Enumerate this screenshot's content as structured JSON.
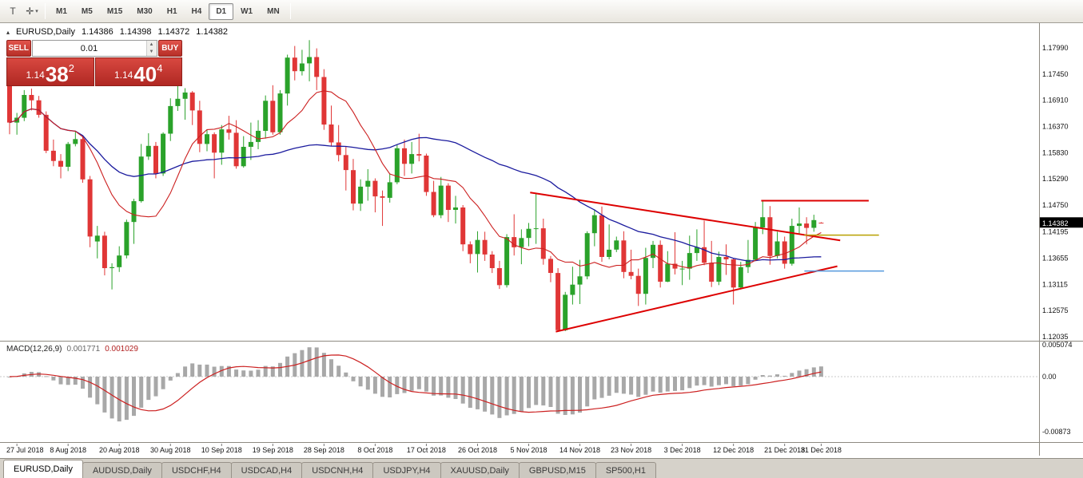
{
  "toolbar": {
    "text_tool_glyph": "T",
    "cursor_tool_glyph": "✛",
    "dropdown_caret_glyph": "▾",
    "timeframes": [
      "M1",
      "M5",
      "M15",
      "M30",
      "H1",
      "H4",
      "D1",
      "W1",
      "MN"
    ],
    "active_timeframe": "D1"
  },
  "chart_header": {
    "toggle_glyph": "▴",
    "symbol_period": "EURUSD,Daily",
    "open": "1.14386",
    "high": "1.14398",
    "low": "1.14372",
    "close": "1.14382"
  },
  "trade_panel": {
    "sell_label": "SELL",
    "buy_label": "BUY",
    "volume": "0.01",
    "spinner_up_glyph": "▲",
    "spinner_down_glyph": "▼",
    "sell_price": {
      "base": "1.14",
      "pips": "38",
      "point": "2"
    },
    "buy_price": {
      "base": "1.14",
      "pips": "40",
      "point": "4"
    },
    "panel_red": "#c7322b"
  },
  "macd_panel": {
    "title": "MACD(12,26,9)",
    "main_value": "0.001771",
    "signal_value": "0.001029"
  },
  "tabs": [
    "EURUSD,Daily",
    "AUDUSD,Daily",
    "USDCHF,H4",
    "USDCAD,H4",
    "USDCNH,H4",
    "USDJPY,H4",
    "XAUUSD,Daily",
    "GBPUSD,M15",
    "SP500,H1"
  ],
  "active_tab": "EURUSD,Daily",
  "chart_data": {
    "type": "candlestick",
    "symbol": "EURUSD",
    "period": "Daily",
    "price_axis_labels": [
      "1.17990",
      "1.17450",
      "1.16910",
      "1.16370",
      "1.15830",
      "1.15290",
      "1.14750",
      "1.14195",
      "1.13655",
      "1.13115",
      "1.12575",
      "1.12035"
    ],
    "current_price": {
      "text": "1.14382",
      "value": 1.14382,
      "badge_bg": "#000000"
    },
    "macd_axis_labels": [
      {
        "text": "0.005074",
        "value": 0.005074
      },
      {
        "text": "0.00",
        "value": 0
      },
      {
        "text": "-0.00873",
        "value": -0.00873
      }
    ],
    "date_ticks": [
      {
        "i": 1,
        "label": "27 Jul 2018"
      },
      {
        "i": 8,
        "label": "8 Aug 2018"
      },
      {
        "i": 15,
        "label": "20 Aug 2018"
      },
      {
        "i": 22,
        "label": "30 Aug 2018"
      },
      {
        "i": 29,
        "label": "10 Sep 2018"
      },
      {
        "i": 36,
        "label": "19 Sep 2018"
      },
      {
        "i": 43,
        "label": "28 Sep 2018"
      },
      {
        "i": 50,
        "label": "8 Oct 2018"
      },
      {
        "i": 57,
        "label": "17 Oct 2018"
      },
      {
        "i": 64,
        "label": "26 Oct 2018"
      },
      {
        "i": 71,
        "label": "5 Nov 2018"
      },
      {
        "i": 78,
        "label": "14 Nov 2018"
      },
      {
        "i": 85,
        "label": "23 Nov 2018"
      },
      {
        "i": 92,
        "label": "3 Dec 2018"
      },
      {
        "i": 99,
        "label": "12 Dec 2018"
      },
      {
        "i": 106,
        "label": "21 Dec 2018"
      },
      {
        "i": 111,
        "label": "31 Dec 2018"
      }
    ],
    "candles": [
      [
        1.173,
        1.1744,
        1.1621,
        1.1645
      ],
      [
        1.1645,
        1.1665,
        1.162,
        1.1655
      ],
      [
        1.1655,
        1.1712,
        1.1648,
        1.1702
      ],
      [
        1.1702,
        1.1715,
        1.167,
        1.1691
      ],
      [
        1.1691,
        1.17,
        1.1655,
        1.1661
      ],
      [
        1.1661,
        1.1668,
        1.1582,
        1.1587
      ],
      [
        1.1587,
        1.161,
        1.1555,
        1.1566
      ],
      [
        1.1566,
        1.158,
        1.153,
        1.1554
      ],
      [
        1.1554,
        1.1605,
        1.1545,
        1.1601
      ],
      [
        1.1601,
        1.1628,
        1.1596,
        1.1611
      ],
      [
        1.1611,
        1.1617,
        1.1521,
        1.1528
      ],
      [
        1.1528,
        1.1535,
        1.1388,
        1.141
      ],
      [
        1.14,
        1.1432,
        1.1365,
        1.1412
      ],
      [
        1.1412,
        1.142,
        1.133,
        1.1345
      ],
      [
        1.1345,
        1.1355,
        1.1301,
        1.1347
      ],
      [
        1.1347,
        1.139,
        1.1337,
        1.1371
      ],
      [
        1.1371,
        1.1445,
        1.1365,
        1.144
      ],
      [
        1.144,
        1.1488,
        1.1395,
        1.1483
      ],
      [
        1.1483,
        1.1601,
        1.148,
        1.1575
      ],
      [
        1.1575,
        1.1623,
        1.1568,
        1.1597
      ],
      [
        1.1597,
        1.1605,
        1.153,
        1.154
      ],
      [
        1.154,
        1.1625,
        1.1535,
        1.1622
      ],
      [
        1.1622,
        1.1695,
        1.1607,
        1.1679
      ],
      [
        1.1679,
        1.1733,
        1.1669,
        1.1694
      ],
      [
        1.1694,
        1.1716,
        1.1651,
        1.1707
      ],
      [
        1.1707,
        1.171,
        1.164,
        1.167
      ],
      [
        1.167,
        1.169,
        1.1584,
        1.1601
      ],
      [
        1.1601,
        1.163,
        1.1586,
        1.1621
      ],
      [
        1.1621,
        1.1625,
        1.153,
        1.1583
      ],
      [
        1.1583,
        1.164,
        1.1558,
        1.1631
      ],
      [
        1.1631,
        1.1659,
        1.161,
        1.1624
      ],
      [
        1.1624,
        1.165,
        1.155,
        1.1555
      ],
      [
        1.1555,
        1.1617,
        1.1552,
        1.1595
      ],
      [
        1.1595,
        1.1645,
        1.1568,
        1.1605
      ],
      [
        1.1605,
        1.165,
        1.159,
        1.1628
      ],
      [
        1.1628,
        1.1701,
        1.1612,
        1.169
      ],
      [
        1.169,
        1.1722,
        1.162,
        1.1625
      ],
      [
        1.1625,
        1.1712,
        1.162,
        1.1705
      ],
      [
        1.1705,
        1.1785,
        1.168,
        1.1779
      ],
      [
        1.1779,
        1.1803,
        1.1732,
        1.1751
      ],
      [
        1.1751,
        1.1795,
        1.1742,
        1.1767
      ],
      [
        1.1767,
        1.1815,
        1.173,
        1.178
      ],
      [
        1.178,
        1.1798,
        1.1712,
        1.1739
      ],
      [
        1.1739,
        1.1755,
        1.163,
        1.1641
      ],
      [
        1.1641,
        1.168,
        1.1597,
        1.1604
      ],
      [
        1.1604,
        1.164,
        1.1565,
        1.1578
      ],
      [
        1.1578,
        1.1595,
        1.1505,
        1.1547
      ],
      [
        1.1547,
        1.157,
        1.1464,
        1.1478
      ],
      [
        1.1478,
        1.1528,
        1.1463,
        1.1513
      ],
      [
        1.1513,
        1.1549,
        1.1484,
        1.1525
      ],
      [
        1.1525,
        1.153,
        1.146,
        1.1493
      ],
      [
        1.1493,
        1.1505,
        1.1432,
        1.149
      ],
      [
        1.149,
        1.154,
        1.148,
        1.1522
      ],
      [
        1.1522,
        1.16,
        1.1518,
        1.1592
      ],
      [
        1.1592,
        1.161,
        1.1535,
        1.156
      ],
      [
        1.156,
        1.1605,
        1.154,
        1.158
      ],
      [
        1.158,
        1.1622,
        1.1565,
        1.1577
      ],
      [
        1.1577,
        1.1581,
        1.1494,
        1.1502
      ],
      [
        1.1502,
        1.1525,
        1.145,
        1.1454
      ],
      [
        1.1454,
        1.1533,
        1.1448,
        1.1515
      ],
      [
        1.1515,
        1.152,
        1.144,
        1.1465
      ],
      [
        1.1465,
        1.1494,
        1.1437,
        1.147
      ],
      [
        1.147,
        1.1475,
        1.138,
        1.1394
      ],
      [
        1.1394,
        1.14,
        1.1355,
        1.1374
      ],
      [
        1.1374,
        1.1421,
        1.1336,
        1.1403
      ],
      [
        1.1403,
        1.142,
        1.136,
        1.1373
      ],
      [
        1.1373,
        1.138,
        1.1335,
        1.1345
      ],
      [
        1.1345,
        1.136,
        1.1302,
        1.131
      ],
      [
        1.131,
        1.1415,
        1.1305,
        1.1409
      ],
      [
        1.1409,
        1.1456,
        1.1371,
        1.1388
      ],
      [
        1.1388,
        1.1425,
        1.1353,
        1.1407
      ],
      [
        1.1407,
        1.1438,
        1.139,
        1.1426
      ],
      [
        1.1426,
        1.15,
        1.1395,
        1.1427
      ],
      [
        1.1427,
        1.1447,
        1.1352,
        1.1364
      ],
      [
        1.1364,
        1.137,
        1.1316,
        1.1335
      ],
      [
        1.1335,
        1.1345,
        1.1216,
        1.1217
      ],
      [
        1.1217,
        1.1296,
        1.1215,
        1.129
      ],
      [
        1.129,
        1.1348,
        1.127,
        1.1311
      ],
      [
        1.1311,
        1.1362,
        1.1271,
        1.1328
      ],
      [
        1.1328,
        1.1421,
        1.1322,
        1.1417
      ],
      [
        1.1417,
        1.1466,
        1.139,
        1.1454
      ],
      [
        1.1454,
        1.1472,
        1.1358,
        1.1368
      ],
      [
        1.1368,
        1.1435,
        1.1363,
        1.1383
      ],
      [
        1.1383,
        1.141,
        1.1378,
        1.1402
      ],
      [
        1.1402,
        1.1421,
        1.1324,
        1.1337
      ],
      [
        1.1337,
        1.1383,
        1.1322,
        1.1329
      ],
      [
        1.1329,
        1.1344,
        1.1267,
        1.1292
      ],
      [
        1.1292,
        1.1387,
        1.127,
        1.1366
      ],
      [
        1.1366,
        1.1401,
        1.1345,
        1.1393
      ],
      [
        1.1393,
        1.1402,
        1.1305,
        1.1317
      ],
      [
        1.1317,
        1.138,
        1.1316,
        1.1354
      ],
      [
        1.1354,
        1.1419,
        1.1332,
        1.1344
      ],
      [
        1.1344,
        1.136,
        1.131,
        1.1344
      ],
      [
        1.1344,
        1.1412,
        1.1321,
        1.1376
      ],
      [
        1.1376,
        1.1425,
        1.136,
        1.1388
      ],
      [
        1.1388,
        1.1443,
        1.1351,
        1.1356
      ],
      [
        1.1356,
        1.1401,
        1.1306,
        1.1317
      ],
      [
        1.1317,
        1.1379,
        1.131,
        1.1368
      ],
      [
        1.1368,
        1.1394,
        1.1331,
        1.1363
      ],
      [
        1.1363,
        1.1365,
        1.127,
        1.1305
      ],
      [
        1.1305,
        1.1358,
        1.1301,
        1.1347
      ],
      [
        1.1347,
        1.1403,
        1.1335,
        1.1362
      ],
      [
        1.1362,
        1.144,
        1.136,
        1.1429
      ],
      [
        1.1429,
        1.1485,
        1.1415,
        1.145
      ],
      [
        1.145,
        1.1473,
        1.1352,
        1.137
      ],
      [
        1.137,
        1.142,
        1.1365,
        1.14
      ],
      [
        1.14,
        1.141,
        1.1344,
        1.1354
      ],
      [
        1.1354,
        1.1447,
        1.135,
        1.1432
      ],
      [
        1.1432,
        1.147,
        1.1414,
        1.1437
      ],
      [
        1.1437,
        1.145,
        1.1394,
        1.1428
      ],
      [
        1.1428,
        1.1455,
        1.142,
        1.1444
      ],
      [
        1.14386,
        1.14398,
        1.14372,
        1.14382
      ]
    ],
    "indicators": {
      "ma_fast_period": 10,
      "ma_slow_period": 40,
      "macd": {
        "fast": 12,
        "slow": 26,
        "signal": 9
      }
    },
    "overlays": {
      "trendlines": [
        {
          "i1": 71.2,
          "p1": 1.1501,
          "i2": 113.6,
          "p2": 1.1402,
          "color": "#dd0000",
          "width": 2
        },
        {
          "i1": 74.7,
          "p1": 1.1214,
          "i2": 113.2,
          "p2": 1.1349,
          "color": "#dd0000",
          "width": 2
        }
      ],
      "hlines": [
        {
          "price": 1.1484,
          "i1": 102.8,
          "i2": 117.5,
          "color": "#dd0000",
          "width": 2
        },
        {
          "price": 1.1413,
          "i1": 108.7,
          "i2": 118.9,
          "color": "#b8a000",
          "width": 1.5
        },
        {
          "price": 1.1339,
          "i1": 108.7,
          "i2": 119.6,
          "color": "#5599dd",
          "width": 1.5
        }
      ]
    },
    "colors": {
      "bull": "#2aa22a",
      "bear": "#e03636",
      "ma_fast": "#cc2020",
      "ma_slow": "#1b1b9e",
      "macd_hist": "#a8a8a8",
      "macd_signal": "#cc2020"
    }
  }
}
